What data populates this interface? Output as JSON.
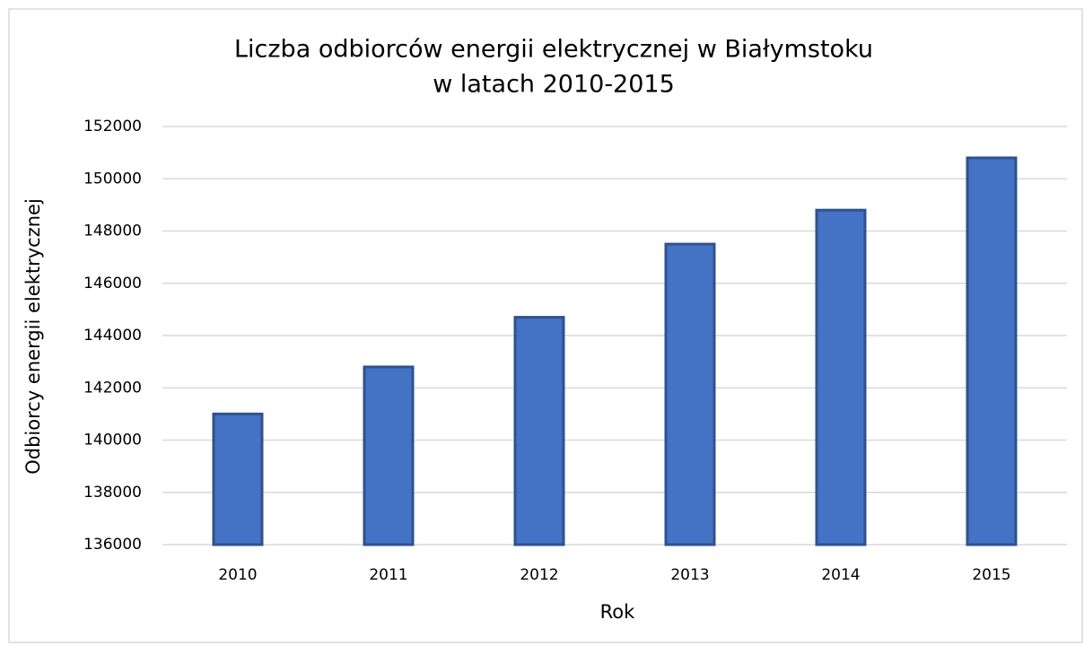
{
  "chart_data": {
    "type": "bar",
    "title": [
      "Liczba odbiorców energii elektrycznej w Białymstoku",
      "w latach 2010-2015"
    ],
    "x_label": "Rok",
    "y_label": "Odbiorcy energii elektrycznej",
    "categories": [
      "2010",
      "2011",
      "2012",
      "2013",
      "2014",
      "2015"
    ],
    "values": [
      141000,
      142800,
      144700,
      147500,
      148800,
      150800
    ],
    "color": "#4472c4",
    "edge_color": "#2f528f",
    "ylim": [
      136000,
      152000
    ],
    "yticks": [
      136000,
      138000,
      140000,
      142000,
      144000,
      146000,
      148000,
      150000,
      152000
    ],
    "grid": true
  }
}
